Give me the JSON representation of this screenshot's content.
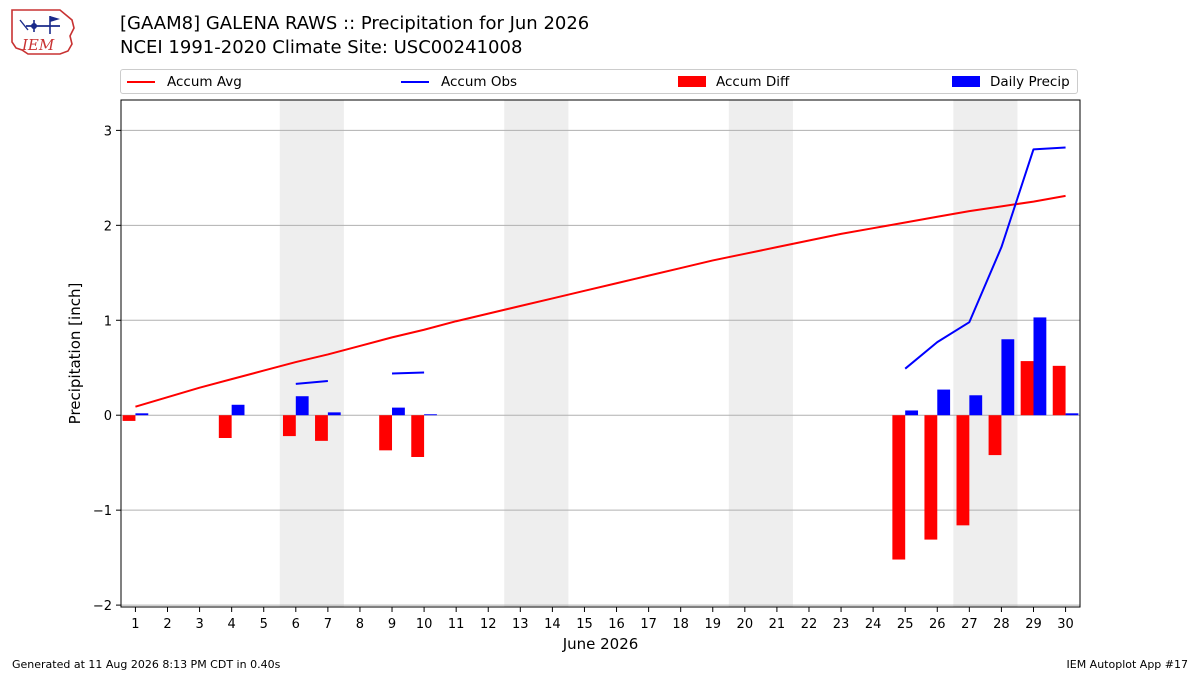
{
  "header": {
    "logo_text": "IEM",
    "title_line1": "[GAAM8] GALENA RAWS :: Precipitation for Jun 2026",
    "title_line2": "NCEI 1991-2020 Climate Site: USC00241008"
  },
  "footer": {
    "generated": "Generated at 11 Aug 2026 8:13 PM CDT in 0.40s",
    "app": "IEM Autoplot App #17"
  },
  "colors": {
    "accum_avg": "#ff0000",
    "accum_obs": "#0000ff",
    "accum_diff": "#ff0000",
    "daily_precip": "#0000ff",
    "weekend_shade": "#eeeeee",
    "grid": "#b0b0b0"
  },
  "chart_data": {
    "type": "bar",
    "xlabel": "June 2026",
    "ylabel": "Precipitation [inch]",
    "ylim": [
      -2.02,
      3.32
    ],
    "xlim": [
      0.55,
      30.45
    ],
    "yticks": [
      -2,
      -1,
      0,
      1,
      2,
      3
    ],
    "ytick_labels": [
      "−2",
      "−1",
      "0",
      "1",
      "2",
      "3"
    ],
    "x": [
      1,
      2,
      3,
      4,
      5,
      6,
      7,
      8,
      9,
      10,
      11,
      12,
      13,
      14,
      15,
      16,
      17,
      18,
      19,
      20,
      21,
      22,
      23,
      24,
      25,
      26,
      27,
      28,
      29,
      30
    ],
    "xtick_labels": [
      "1",
      "2",
      "3",
      "4",
      "5",
      "6",
      "7",
      "8",
      "9",
      "10",
      "11",
      "12",
      "13",
      "14",
      "15",
      "16",
      "17",
      "18",
      "19",
      "20",
      "21",
      "22",
      "23",
      "24",
      "25",
      "26",
      "27",
      "28",
      "29",
      "30"
    ],
    "grid": "horizontal",
    "legend_position": "top",
    "weekend_spans": [
      [
        5.5,
        7.5
      ],
      [
        12.5,
        14.5
      ],
      [
        19.5,
        21.5
      ],
      [
        26.5,
        28.5
      ]
    ],
    "series": [
      {
        "name": "Accum Avg",
        "type": "line",
        "values": [
          0.09,
          0.19,
          0.29,
          0.38,
          0.47,
          0.56,
          0.64,
          0.73,
          0.82,
          0.9,
          0.99,
          1.07,
          1.15,
          1.23,
          1.31,
          1.39,
          1.47,
          1.55,
          1.63,
          1.7,
          1.77,
          1.84,
          1.91,
          1.97,
          2.03,
          2.09,
          2.15,
          2.2,
          2.25,
          2.31
        ]
      },
      {
        "name": "Accum Obs",
        "type": "line",
        "values": [
          null,
          null,
          null,
          null,
          null,
          0.33,
          0.36,
          null,
          0.44,
          0.45,
          null,
          null,
          null,
          null,
          null,
          null,
          null,
          null,
          null,
          null,
          null,
          null,
          null,
          null,
          0.49,
          0.77,
          0.98,
          1.77,
          2.8,
          2.82
        ]
      },
      {
        "name": "Accum Diff",
        "type": "bar",
        "values": [
          -0.06,
          null,
          null,
          -0.24,
          null,
          -0.22,
          -0.27,
          null,
          -0.37,
          -0.44,
          null,
          null,
          null,
          null,
          null,
          null,
          null,
          null,
          null,
          null,
          null,
          null,
          null,
          null,
          -1.52,
          -1.31,
          -1.16,
          -0.42,
          0.57,
          0.52
        ]
      },
      {
        "name": "Daily Precip",
        "type": "bar",
        "values": [
          0.02,
          null,
          null,
          0.11,
          null,
          0.2,
          0.03,
          null,
          0.08,
          0.01,
          null,
          null,
          null,
          null,
          null,
          null,
          null,
          null,
          null,
          null,
          null,
          null,
          null,
          null,
          0.05,
          0.27,
          0.21,
          0.8,
          1.03,
          0.02
        ]
      }
    ]
  }
}
